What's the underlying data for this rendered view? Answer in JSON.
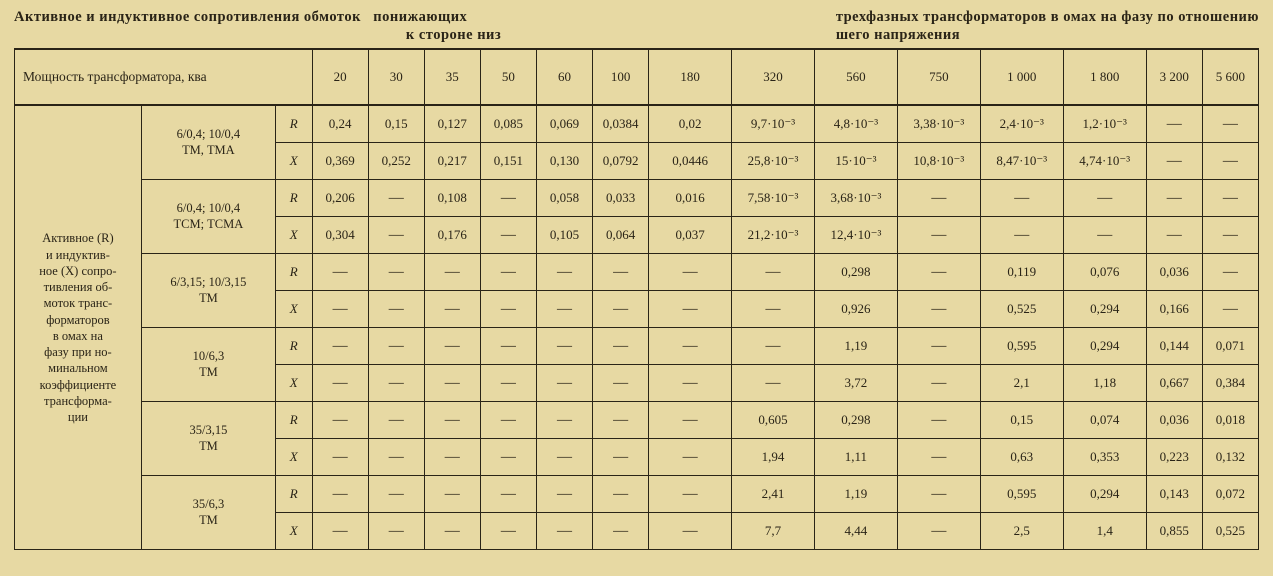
{
  "title": {
    "left": "Активное и индуктивное сопротивления обмоток   понижающих\n                                                                                               к стороне низ",
    "right": "трехфазных трансформаторов в омах на фазу по отношению\nшего напряжения"
  },
  "header": {
    "power_label": "Мощность трансформатора, ква",
    "columns": [
      "20",
      "30",
      "35",
      "50",
      "60",
      "100",
      "180",
      "320",
      "560",
      "750",
      "1 000",
      "1 800",
      "3 200",
      "5 600"
    ]
  },
  "side_label": "Активное (R)\nи индуктив-\nное (X) сопро-\nтивления об-\nмоток транс-\nформаторов\nв омах на\nфазу при но-\nминальном\nкоэффициенте\nтрансформа-\nции",
  "groups": [
    {
      "type_label": "6/0,4; 10/0,4\nТМ, ТМА",
      "R": [
        "0,24",
        "0,15",
        "0,127",
        "0,085",
        "0,069",
        "0,0384",
        "0,02",
        "9,7·10⁻³",
        "4,8·10⁻³",
        "3,38·10⁻³",
        "2,4·10⁻³",
        "1,2·10⁻³",
        "—",
        "—"
      ],
      "X": [
        "0,369",
        "0,252",
        "0,217",
        "0,151",
        "0,130",
        "0,0792",
        "0,0446",
        "25,8·10⁻³",
        "15·10⁻³",
        "10,8·10⁻³",
        "8,47·10⁻³",
        "4,74·10⁻³",
        "—",
        "—"
      ]
    },
    {
      "type_label": "6/0,4; 10/0,4\nТСМ; ТСМА",
      "R": [
        "0,206",
        "—",
        "0,108",
        "—",
        "0,058",
        "0,033",
        "0,016",
        "7,58·10⁻³",
        "3,68·10⁻³",
        "—",
        "—",
        "—",
        "—",
        "—"
      ],
      "X": [
        "0,304",
        "—",
        "0,176",
        "—",
        "0,105",
        "0,064",
        "0,037",
        "21,2·10⁻³",
        "12,4·10⁻³",
        "—",
        "—",
        "—",
        "—",
        "—"
      ]
    },
    {
      "type_label": "6/3,15; 10/3,15\nТМ",
      "R": [
        "—",
        "—",
        "—",
        "—",
        "—",
        "—",
        "—",
        "—",
        "0,298",
        "—",
        "0,119",
        "0,076",
        "0,036",
        "—"
      ],
      "X": [
        "—",
        "—",
        "—",
        "—",
        "—",
        "—",
        "—",
        "—",
        "0,926",
        "—",
        "0,525",
        "0,294",
        "0,166",
        "—"
      ]
    },
    {
      "type_label": "10/6,3\nТМ",
      "R": [
        "—",
        "—",
        "—",
        "—",
        "—",
        "—",
        "—",
        "—",
        "1,19",
        "—",
        "0,595",
        "0,294",
        "0,144",
        "0,071"
      ],
      "X": [
        "—",
        "—",
        "—",
        "—",
        "—",
        "—",
        "—",
        "—",
        "3,72",
        "—",
        "2,1",
        "1,18",
        "0,667",
        "0,384"
      ]
    },
    {
      "type_label": "35/3,15\nТМ",
      "R": [
        "—",
        "—",
        "—",
        "—",
        "—",
        "—",
        "—",
        "0,605",
        "0,298",
        "—",
        "0,15",
        "0,074",
        "0,036",
        "0,018"
      ],
      "X": [
        "—",
        "—",
        "—",
        "—",
        "—",
        "—",
        "—",
        "1,94",
        "1,11",
        "—",
        "0,63",
        "0,353",
        "0,223",
        "0,132"
      ]
    },
    {
      "type_label": "35/6,3\nТМ",
      "R": [
        "—",
        "—",
        "—",
        "—",
        "—",
        "—",
        "—",
        "2,41",
        "1,19",
        "—",
        "0,595",
        "0,294",
        "0,143",
        "0,072"
      ],
      "X": [
        "—",
        "—",
        "—",
        "—",
        "—",
        "—",
        "—",
        "7,7",
        "4,44",
        "—",
        "2,5",
        "1,4",
        "0,855",
        "0,525"
      ]
    }
  ],
  "rx_labels": {
    "R": "R",
    "X": "X"
  },
  "style": {
    "background": "#e7d9a3",
    "ink": "#2a2417",
    "font": "Times New Roman",
    "title_fontsize_pt": 11,
    "cell_fontsize_pt": 10
  }
}
